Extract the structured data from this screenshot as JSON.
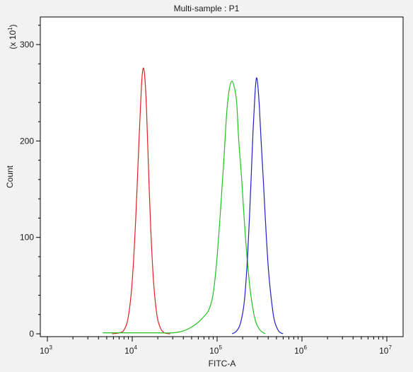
{
  "chart_data": {
    "type": "line",
    "title": "Multi-sample : P1",
    "xlabel": "FITC-A",
    "ylabel": "Count",
    "y_multiplier": "(x 10",
    "y_multiplier_exp": "1",
    "y_multiplier_close": ")",
    "x_scale": "log",
    "xlim": [
      1000,
      10000000
    ],
    "ylim": [
      0,
      330
    ],
    "x_ticks": [
      {
        "base": "10",
        "exp": "3",
        "value": 1000
      },
      {
        "base": "10",
        "exp": "4",
        "value": 10000
      },
      {
        "base": "10",
        "exp": "5",
        "value": 100000
      },
      {
        "base": "10",
        "exp": "6",
        "value": 1000000
      },
      {
        "base": "10",
        "exp": "7",
        "value": 10000000
      }
    ],
    "y_ticks": [
      {
        "label": "0",
        "value": 0
      },
      {
        "label": "100",
        "value": 100
      },
      {
        "label": "200",
        "value": 200
      },
      {
        "label": "300",
        "value": 300
      }
    ],
    "grid": false,
    "legend": "none",
    "series": [
      {
        "color": "#e02020",
        "x": [
          5800,
          7000,
          8000,
          9000,
          10000,
          11000,
          12000,
          12800,
          13400,
          14000,
          14700,
          15500,
          16500,
          17800,
          19500,
          21500,
          24000,
          28000
        ],
        "y": [
          0,
          1,
          4,
          18,
          55,
          120,
          200,
          255,
          275,
          268,
          235,
          175,
          110,
          55,
          20,
          6,
          1,
          0
        ]
      },
      {
        "color": "#20c020",
        "x": [
          4500,
          10000,
          20000,
          30000,
          40000,
          50000,
          60000,
          70000,
          80000,
          90000,
          100000,
          110000,
          120000,
          130000,
          140000,
          150000,
          160000,
          170000,
          180000,
          195000,
          210000,
          230000,
          250000,
          280000,
          320000,
          370000
        ],
        "y": [
          1,
          1,
          1,
          1,
          3,
          7,
          12,
          18,
          25,
          42,
          80,
          130,
          180,
          230,
          255,
          262,
          255,
          240,
          200,
          160,
          115,
          70,
          40,
          15,
          4,
          0
        ]
      },
      {
        "color": "#2020c8",
        "x": [
          150000,
          170000,
          190000,
          210000,
          230000,
          250000,
          265000,
          280000,
          290000,
          300000,
          315000,
          330000,
          350000,
          375000,
          400000,
          430000,
          470000,
          530000,
          600000
        ],
        "y": [
          0,
          3,
          12,
          35,
          85,
          155,
          210,
          250,
          265,
          260,
          235,
          200,
          160,
          110,
          70,
          40,
          15,
          3,
          0
        ]
      }
    ]
  }
}
